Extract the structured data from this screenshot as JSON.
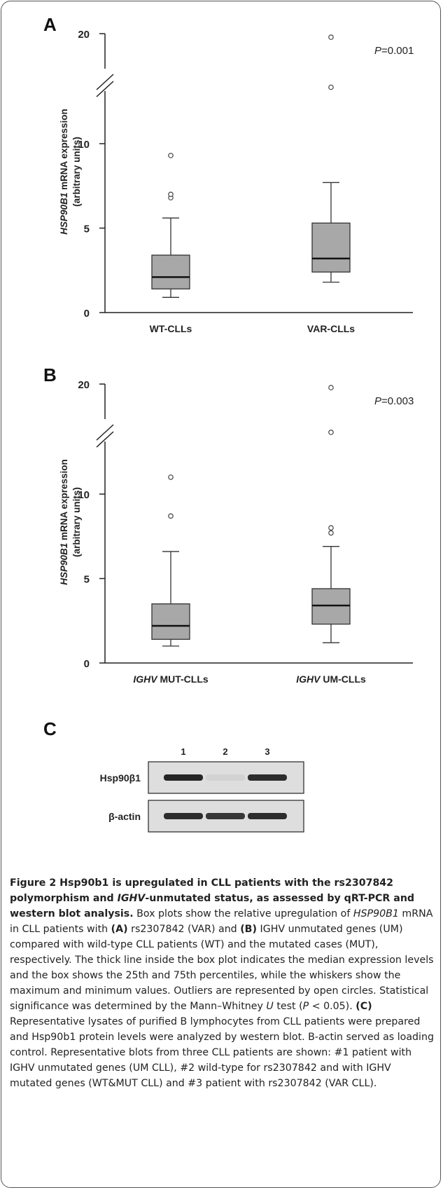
{
  "panels": {
    "a": {
      "letter": "A",
      "pvalue": "P=0.001",
      "ylabel_italic": "HSP90B1",
      "ylabel_rest": " mRNA expression",
      "ylabel_units": "(arbitrary units)",
      "yticks": [
        "0",
        "5",
        "10",
        "20"
      ],
      "categories": [
        {
          "italic": "",
          "text": "WT-CLLs"
        },
        {
          "italic": "",
          "text": "VAR-CLLs"
        }
      ]
    },
    "b": {
      "letter": "B",
      "pvalue": "P=0.003",
      "ylabel_italic": "HSP90B1",
      "ylabel_rest": " mRNA expression",
      "ylabel_units": "(arbitrary units)",
      "yticks": [
        "0",
        "5",
        "10",
        "20"
      ],
      "categories": [
        {
          "italic": "IGHV",
          "text": " MUT-CLLs"
        },
        {
          "italic": "IGHV",
          "text": " UM-CLLs"
        }
      ]
    },
    "c": {
      "letter": "C",
      "lanes": [
        "1",
        "2",
        "3"
      ],
      "rows": [
        "Hsp90β1",
        "β-actin"
      ]
    }
  },
  "chart_data": [
    {
      "type": "box",
      "title": "",
      "ylabel": "HSP90B1 mRNA expression (arbitrary units)",
      "ylim": [
        0,
        20
      ],
      "yaxis_break": [
        12,
        19
      ],
      "categories": [
        "WT-CLLs",
        "VAR-CLLs"
      ],
      "boxes": [
        {
          "min": 0.9,
          "q1": 1.4,
          "median": 2.1,
          "q3": 3.4,
          "max": 5.6,
          "outliers": [
            6.8,
            7.0,
            9.3
          ]
        },
        {
          "min": 1.8,
          "q1": 2.4,
          "median": 3.2,
          "q3": 5.3,
          "max": 7.7,
          "outliers": [
            14.0,
            19.6
          ]
        }
      ],
      "annotation": "P=0.001"
    },
    {
      "type": "box",
      "title": "",
      "ylabel": "HSP90B1 mRNA expression (arbitrary units)",
      "ylim": [
        0,
        20
      ],
      "yaxis_break": [
        12,
        19
      ],
      "categories": [
        "IGHV MUT-CLLs",
        "IGHV UM-CLLs"
      ],
      "boxes": [
        {
          "min": 1.0,
          "q1": 1.4,
          "median": 2.2,
          "q3": 3.5,
          "max": 6.6,
          "outliers": [
            8.7,
            11.0
          ]
        },
        {
          "min": 1.2,
          "q1": 2.3,
          "median": 3.4,
          "q3": 4.4,
          "max": 6.9,
          "outliers": [
            7.7,
            8.0,
            14.6,
            19.6
          ]
        }
      ],
      "annotation": "P=0.003"
    }
  ],
  "caption": {
    "t1": "Figure 2 Hsp90b1 is upregulated in CLL patients with the rs2307842 polymorphism and ",
    "t2": "IGHV",
    "t3": "-unmutated status, as assessed by qRT-PCR and western blot analysis.",
    "t4": " Box plots show the relative upregulation of ",
    "t5": "HSP90B1",
    "t6": " mRNA in CLL patients with ",
    "t7": "(A)",
    "t8": " rs2307842 (VAR) and ",
    "t9": "(B)",
    "t10": " IGHV unmutated genes (UM) compared with wild-type CLL patients (WT) and the mutated cases (MUT), respectively. The thick line inside the box plot indicates the median expression levels and the box shows the 25th and 75th percentiles, while the whiskers show the maximum and minimum values. Outliers are represented by open circles. Statistical significance was determined by the Mann–Whitney ",
    "t11": "U",
    "t12": " test (",
    "t13": "P",
    "t14": " < 0.05). ",
    "t15": "(C)",
    "t16": " Representative lysates of purified B lymphocytes from CLL patients were prepared and Hsp90b1 protein levels were analyzed by western blot. B-actin served as loading control. Representative blots from three CLL patients are shown: #1 patient with IGHV unmutated genes (UM CLL), #2 wild-type for rs2307842 and with IGHV mutated genes (WT&MUT CLL) and #3 patient with rs2307842 (VAR CLL)."
  }
}
